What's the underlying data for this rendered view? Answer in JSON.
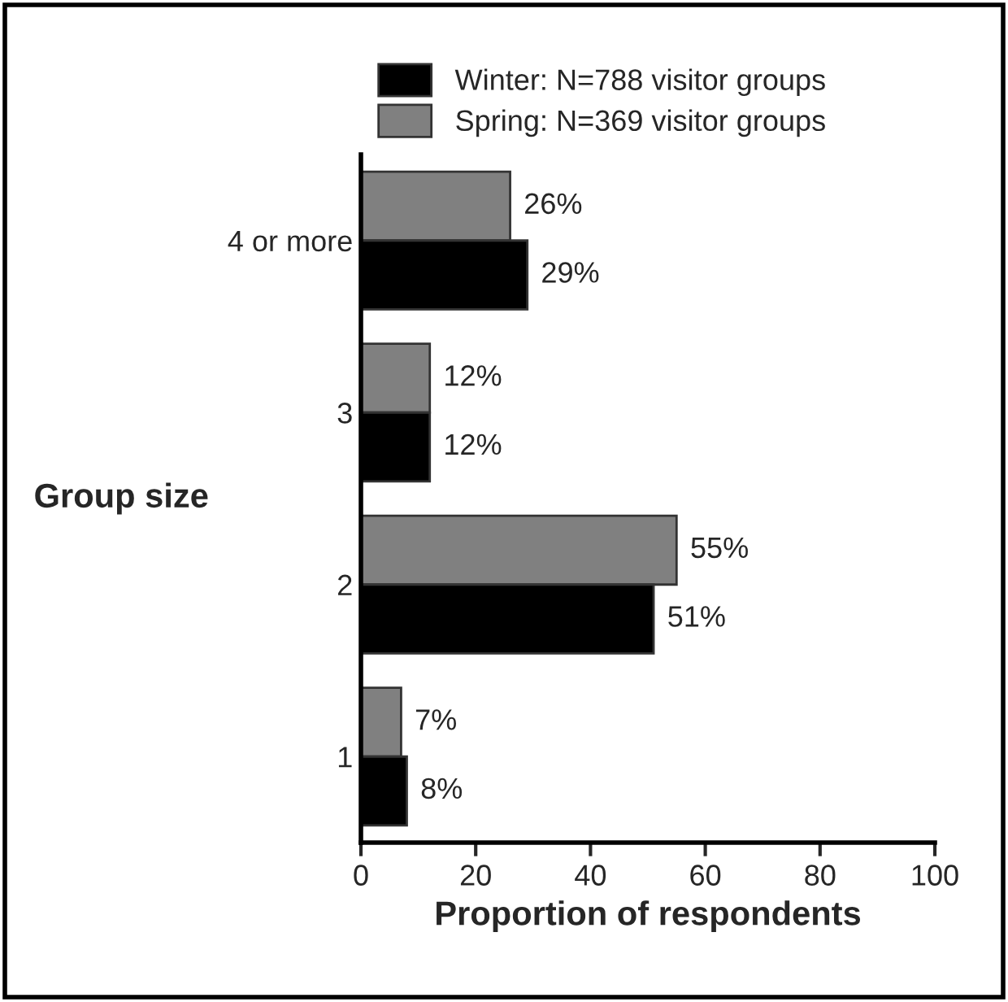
{
  "chart_data": {
    "type": "bar",
    "orientation": "horizontal",
    "categories": [
      "4 or more",
      "3",
      "2",
      "1"
    ],
    "series": [
      {
        "name": "Spring: N=369 visitor groups",
        "color": "#808080",
        "values": [
          26,
          12,
          55,
          7
        ],
        "value_labels": [
          "26%",
          "12%",
          "55%",
          "7%"
        ]
      },
      {
        "name": "Winter: N=788 visitor groups",
        "color": "#000000",
        "values": [
          29,
          12,
          51,
          8
        ],
        "value_labels": [
          "29%",
          "12%",
          "51%",
          "8%"
        ]
      }
    ],
    "xlabel": "Proportion of respondents",
    "ylabel": "Group size",
    "xlim": [
      0,
      100
    ],
    "xticks": [
      0,
      20,
      40,
      60,
      80,
      100
    ],
    "legend": "top",
    "grid": false
  }
}
